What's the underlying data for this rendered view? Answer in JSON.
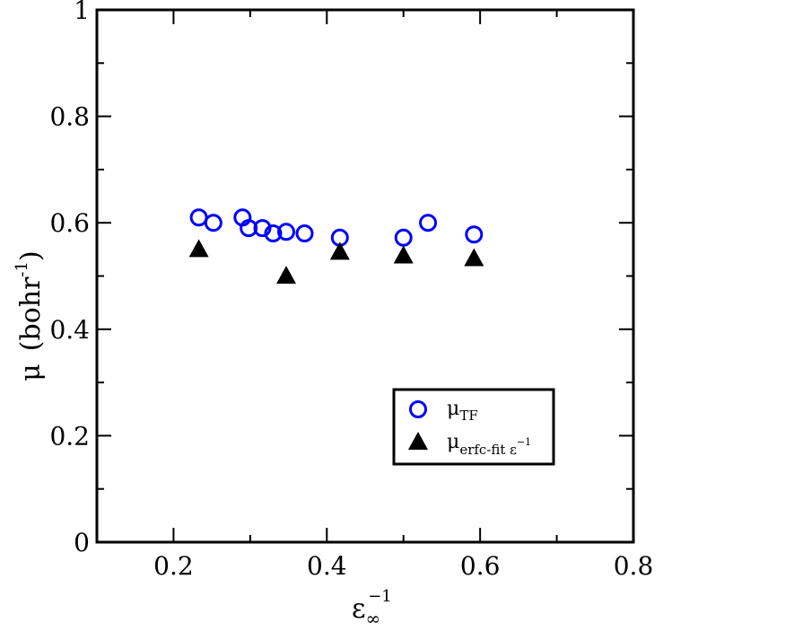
{
  "chart_data": {
    "type": "scatter",
    "title": "",
    "xlabel": {
      "base": "ε",
      "sub": "∞",
      "sup": "−1"
    },
    "ylabel": {
      "symbol": "μ",
      "text": "(bohr",
      "sup": "-1",
      "close": ")"
    },
    "xlim": [
      0.1,
      0.8
    ],
    "ylim": [
      0,
      1
    ],
    "x_ticks": [
      0.2,
      0.4,
      0.6,
      0.8
    ],
    "x_tick_labels": [
      "0.2",
      "0.4",
      "0.6",
      "0.8"
    ],
    "y_ticks": [
      0,
      0.2,
      0.4,
      0.6,
      0.8,
      1
    ],
    "y_tick_labels": [
      "0",
      "0.2",
      "0.4",
      "0.6",
      "0.8",
      "1"
    ],
    "grid": false,
    "legend_position": "lower-right",
    "series": [
      {
        "name": {
          "base": "μ",
          "sub": "TF"
        },
        "marker": "open-circle",
        "color": "#0000ff",
        "points": [
          [
            0.233,
            0.61
          ],
          [
            0.252,
            0.6
          ],
          [
            0.29,
            0.61
          ],
          [
            0.298,
            0.59
          ],
          [
            0.316,
            0.59
          ],
          [
            0.33,
            0.58
          ],
          [
            0.347,
            0.583
          ],
          [
            0.371,
            0.58
          ],
          [
            0.417,
            0.572
          ],
          [
            0.5,
            0.572
          ],
          [
            0.532,
            0.6
          ],
          [
            0.592,
            0.578
          ]
        ]
      },
      {
        "name": {
          "base": "μ",
          "sub": "erfc-fit ε",
          "sup": "−1"
        },
        "marker": "filled-triangle",
        "color": "#000000",
        "points": [
          [
            0.233,
            0.55
          ],
          [
            0.347,
            0.5
          ],
          [
            0.417,
            0.545
          ],
          [
            0.5,
            0.538
          ],
          [
            0.592,
            0.533
          ]
        ]
      }
    ]
  }
}
